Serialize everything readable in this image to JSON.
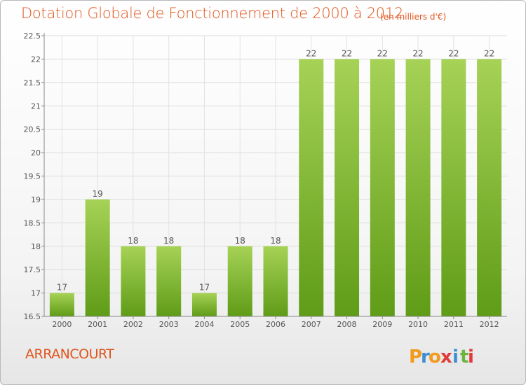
{
  "title": "Dotation Globale de Fonctionnement de 2000 à 2012",
  "subtitle": "(en milliers d'€)",
  "commune": "ARRANCOURT",
  "logo": {
    "letters": [
      "P",
      "r",
      "o",
      "x",
      "i",
      "t",
      "i"
    ],
    "colors": [
      "#f29a1d",
      "#3b8fd3",
      "#f29a1d",
      "#e23b3b",
      "#3b8fd3",
      "#6db33f",
      "#e23b3b"
    ]
  },
  "colors": {
    "title": "#e0541b",
    "bar_top": "#a6d256",
    "bar_bottom": "#5f9c17"
  },
  "chart_data": {
    "type": "bar",
    "categories": [
      "2000",
      "2001",
      "2002",
      "2003",
      "2004",
      "2005",
      "2006",
      "2007",
      "2008",
      "2009",
      "2010",
      "2011",
      "2012"
    ],
    "values": [
      17,
      19,
      18,
      18,
      17,
      18,
      18,
      22,
      22,
      22,
      22,
      22,
      22
    ],
    "data_labels": [
      "17",
      "19",
      "18",
      "18",
      "17",
      "18",
      "18",
      "22",
      "22",
      "22",
      "22",
      "22",
      "22"
    ],
    "ylim": [
      16.5,
      22.5
    ],
    "yticks": [
      16.5,
      17,
      17.5,
      18,
      18.5,
      19,
      19.5,
      20,
      20.5,
      21,
      21.5,
      22,
      22.5
    ],
    "ytick_labels": [
      "16.5",
      "17",
      "17.5",
      "18",
      "18.5",
      "19",
      "19.5",
      "20",
      "20.5",
      "21",
      "21.5",
      "22",
      "22.5"
    ],
    "grid": true,
    "xlabel": "",
    "ylabel": ""
  }
}
